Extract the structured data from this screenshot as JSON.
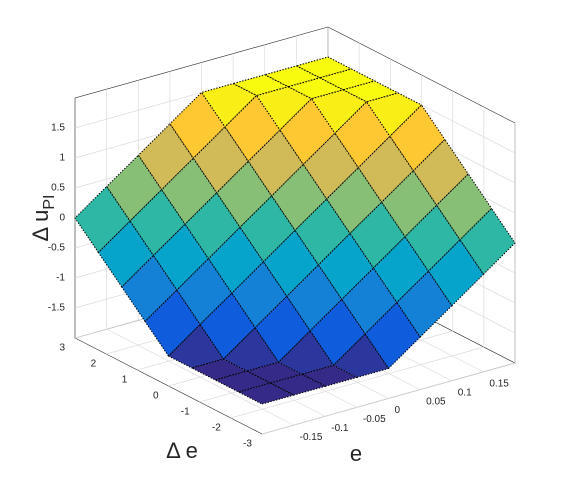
{
  "chart_data": {
    "type": "surface",
    "xlabel": "e",
    "ylabel": "Δ e",
    "zlabel": "Δ u",
    "zlabel_subscript": "PI",
    "x": [
      -0.2,
      -0.15,
      -0.1,
      -0.05,
      0,
      0.05,
      0.1,
      0.15,
      0.2
    ],
    "y": [
      -3,
      -2.25,
      -1.5,
      -0.75,
      0,
      0.75,
      1.5,
      2.25,
      3
    ],
    "z": [
      [
        -1.5,
        -1.5,
        -1.5,
        -1.5,
        -1.5,
        -1.125,
        -0.75,
        -0.375,
        0
      ],
      [
        -1.5,
        -1.5,
        -1.5,
        -1.5,
        -1.125,
        -0.75,
        -0.375,
        0,
        0.375
      ],
      [
        -1.5,
        -1.5,
        -1.5,
        -1.125,
        -0.75,
        -0.375,
        0,
        0.375,
        0.75
      ],
      [
        -1.5,
        -1.5,
        -1.125,
        -0.75,
        -0.375,
        0,
        0.375,
        0.75,
        1.125
      ],
      [
        -1.5,
        -1.125,
        -0.75,
        -0.375,
        0,
        0.375,
        0.75,
        1.125,
        1.5
      ],
      [
        -1.125,
        -0.75,
        -0.375,
        0,
        0.375,
        0.75,
        1.125,
        1.5,
        1.5
      ],
      [
        -0.75,
        -0.375,
        0,
        0.375,
        0.75,
        1.125,
        1.5,
        1.5,
        1.5
      ],
      [
        -0.375,
        0,
        0.375,
        0.75,
        1.125,
        1.5,
        1.5,
        1.5,
        1.5
      ],
      [
        0,
        0.375,
        0.75,
        1.125,
        1.5,
        1.5,
        1.5,
        1.5,
        1.5
      ]
    ],
    "xlim": [
      -0.2,
      0.2
    ],
    "ylim": [
      -3,
      3
    ],
    "zlim": [
      -2,
      2
    ],
    "xticks": [
      -0.15,
      -0.1,
      -0.05,
      0,
      0.05,
      0.1,
      0.15
    ],
    "yticks": [
      -3,
      -2,
      -1,
      0,
      1,
      2,
      3
    ],
    "zticks": [
      -1.5,
      -1,
      -0.5,
      0,
      0.5,
      1,
      1.5
    ],
    "grid": true,
    "colormap": "parula",
    "edge_color": "#000000"
  }
}
